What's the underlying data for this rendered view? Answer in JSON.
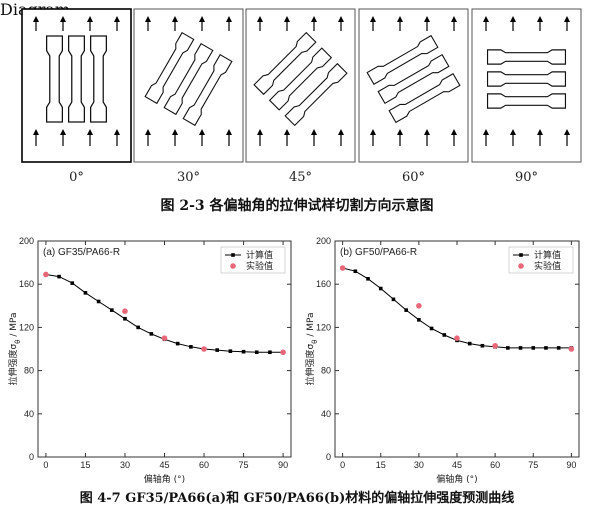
{
  "figure1": {
    "caption": "图 2-3 各偏轴角的拉伸试样切割方向示意图",
    "panels": [
      {
        "angle": 0,
        "label": "0°"
      },
      {
        "angle": 30,
        "label": "30°"
      },
      {
        "angle": 45,
        "label": "45°"
      },
      {
        "angle": 60,
        "label": "60°"
      },
      {
        "angle": 90,
        "label": "90°"
      }
    ]
  },
  "figure2": {
    "caption": "图 4-7 GF35/PA66(a)和 GF50/PA66(b)材料的偏轴拉伸强度预测曲线"
  },
  "chart_data": [
    {
      "type": "line",
      "title": "(a) GF35/PA66-R",
      "xlabel": "偏轴角 (°)",
      "ylabel_main": "拉伸强度σ",
      "ylabel_sub": "θ",
      "ylabel_unit": " / MPa",
      "xlim": [
        -3,
        93
      ],
      "ylim": [
        0,
        200
      ],
      "xticks": [
        0,
        15,
        30,
        45,
        60,
        75,
        90
      ],
      "yticks": [
        0,
        40,
        80,
        120,
        160,
        200
      ],
      "legend": "top-right",
      "series": [
        {
          "name": "计算值",
          "marker": "square",
          "color": "#000000",
          "x": [
            0,
            5,
            10,
            15,
            20,
            25,
            30,
            35,
            40,
            45,
            50,
            55,
            60,
            65,
            70,
            75,
            80,
            85,
            90
          ],
          "y": [
            169,
            167,
            161,
            152,
            144,
            136,
            128,
            120,
            114,
            109,
            105,
            102,
            100,
            99,
            98,
            97.5,
            97,
            97,
            97
          ]
        },
        {
          "name": "实验值",
          "marker": "circle",
          "color": "#e8687a",
          "x": [
            0,
            30,
            45,
            60,
            90
          ],
          "y": [
            169,
            135,
            110,
            100,
            97
          ]
        }
      ]
    },
    {
      "type": "line",
      "title": "(b) GF50/PA66-R",
      "xlabel": "偏轴角 (°)",
      "ylabel_main": "拉伸强度σ",
      "ylabel_sub": "θ",
      "ylabel_unit": " / MPa",
      "xlim": [
        -3,
        93
      ],
      "ylim": [
        0,
        200
      ],
      "xticks": [
        0,
        15,
        30,
        45,
        60,
        75,
        90
      ],
      "yticks": [
        0,
        40,
        80,
        120,
        160,
        200
      ],
      "legend": "top-right",
      "series": [
        {
          "name": "计算值",
          "marker": "square",
          "color": "#000000",
          "x": [
            0,
            5,
            10,
            15,
            20,
            25,
            30,
            35,
            40,
            45,
            50,
            55,
            60,
            65,
            70,
            75,
            80,
            85,
            90
          ],
          "y": [
            175,
            172,
            165,
            156,
            146,
            136,
            127,
            119,
            113,
            108,
            105,
            103,
            102,
            101,
            101,
            101,
            101,
            101,
            101
          ]
        },
        {
          "name": "实验值",
          "marker": "circle",
          "color": "#e8687a",
          "x": [
            0,
            30,
            45,
            60,
            90
          ],
          "y": [
            175,
            140,
            110,
            103,
            100
          ]
        }
      ]
    }
  ]
}
